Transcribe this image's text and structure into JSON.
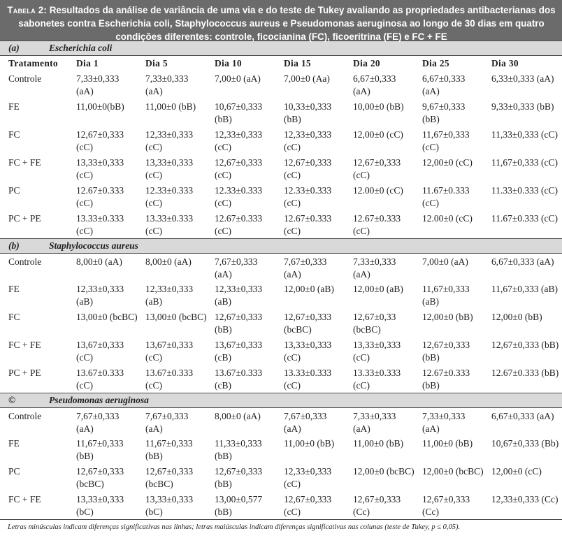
{
  "caption": {
    "lead": "Tabela 2:",
    "text": "Resultados da análise de variância de uma via e do teste de Tukey avaliando as propriedades antibacterianas dos sabonetes contra Escherichia coli, Staphylococcus aureus e Pseudomonas aeruginosa ao longo de 30 dias em quatro condições diferentes: controle, ficocianina (FC), ficoeritrina (FE) e FC + FE"
  },
  "header": [
    "Tratamento",
    "Dia 1",
    "Dia 5",
    "Dia 10",
    "Dia 15",
    "Dia 20",
    "Dia 25",
    "Dia 30"
  ],
  "sections": [
    {
      "tag": "(a)",
      "organism": "Escherichia coli",
      "rows": [
        {
          "label": "Controle",
          "cells": [
            "7,33±0,333 (aA)",
            "7,33±0,333 (aA)",
            "7,00±0 (aA)",
            "7,00±0 (Aa)",
            "6,67±0,333 (aA)",
            "6,67±0,333 (aA)",
            "6,33±0,333 (aA)"
          ]
        },
        {
          "label": "FE",
          "cells": [
            "11,00±0(bB)",
            "11,00±0 (bB)",
            "10,67±0,333 (bB)",
            "10,33±0,333 (bB)",
            "10,00±0 (bB)",
            "9,67±0,333 (bB)",
            "9,33±0,333 (bB)"
          ]
        },
        {
          "label": "FC",
          "cells": [
            "12,67±0,333 (cC)",
            "12,33±0,333 (cC)",
            "12,33±0,333 (cC)",
            "12,33±0,333 (cC)",
            "12,00±0 (cC)",
            "11,67±0,333 (cC)",
            "11,33±0,333 (cC)"
          ]
        },
        {
          "label": "FC + FE",
          "cells": [
            "13,33±0,333 (cC)",
            "13,33±0,333 (cC)",
            "12,67±0,333 (cC)",
            "12,67±0,333 (cC)",
            "12,67±0,333 (cC)",
            "12,00±0 (cC)",
            "11,67±0,333 (cC)"
          ]
        },
        {
          "label": "PC",
          "cells": [
            "12.67±0.333 (cC)",
            "12.33±0.333 (cC)",
            "12.33±0.333 (cC)",
            "12.33±0.333 (cC)",
            "12.00±0 (cC)",
            "11.67±0.333 (cC)",
            "11.33±0.333 (cC)"
          ]
        },
        {
          "label": "PC + PE",
          "cells": [
            "13.33±0.333 (cC)",
            "13.33±0.333 (cC)",
            "12.67±0.333 (cC)",
            "12.67±0.333 (cC)",
            "12.67±0.333 (cC)",
            "12.00±0 (cC)",
            "11.67±0.333 (cC)"
          ]
        }
      ]
    },
    {
      "tag": "(b)",
      "organism": "Staphylococcus aureus",
      "rows": [
        {
          "label": "Controle",
          "cells": [
            "8,00±0 (aA)",
            "8,00±0 (aA)",
            "7,67±0,333 (aA)",
            "7,67±0,333 (aA)",
            "7,33±0,333 (aA)",
            "7,00±0 (aA)",
            "6,67±0,333 (aA)"
          ]
        },
        {
          "label": "FE",
          "cells": [
            "12,33±0,333 (aB)",
            "12,33±0,333 (aB)",
            "12,33±0,333 (aB)",
            "12,00±0 (aB)",
            "12,00±0 (aB)",
            "11,67±0,333 (aB)",
            "11,67±0,333 (aB)"
          ]
        },
        {
          "label": "FC",
          "cells": [
            "13,00±0 (bcBC)",
            "13,00±0 (bcBC)",
            "12,67±0,333 (bB)",
            "12,67±0,333 (bcBC)",
            "12,67±0,33 (bcBC)",
            "12,00±0 (bB)",
            "12,00±0 (bB)"
          ]
        },
        {
          "label": "FC + FE",
          "cells": [
            "13,67±0,333 (cC)",
            "13,67±0,333 (cC)",
            "13,67±0,333 (cB)",
            "13,33±0,333 (cC)",
            "13,33±0,333 (cC)",
            "12,67±0,333 (bB)",
            "12,67±0,333 (bB)"
          ]
        },
        {
          "label": "PC + PE",
          "cells": [
            "13.67±0.333 (cC)",
            "13.67±0.333 (cC)",
            "13.67±0.333 (cB)",
            "13.33±0.333 (cC)",
            "13.33±0.333 (cC)",
            "12.67±0.333 (bB)",
            "12.67±0.333 (bB)"
          ]
        }
      ]
    },
    {
      "tag": "©",
      "organism": "Pseudomonas aeruginosa",
      "rows": [
        {
          "label": "Controle",
          "cells": [
            "7,67±0,333 (aA)",
            "7,67±0,333 (aA)",
            "8,00±0 (aA)",
            "7,67±0,333 (aA)",
            "7,33±0,333 (aA)",
            "7,33±0,333 (aA)",
            "6,67±0,333 (aA)"
          ]
        },
        {
          "label": "FE",
          "cells": [
            "11,67±0,333 (bB)",
            "11,67±0,333 (bB)",
            "11,33±0,333 (bB)",
            "11,00±0 (bB)",
            "11,00±0 (bB)",
            "11,00±0 (bB)",
            "10,67±0,333 (Bb)"
          ]
        },
        {
          "label": "PC",
          "cells": [
            "12,67±0,333 (bcBC)",
            "12,67±0,333 (bcBC)",
            "12,67±0,333 (bB)",
            "12,33±0,333 (cC)",
            "12,00±0 (bcBC)",
            "12,00±0 (bcBC)",
            "12,00±0 (cC)"
          ]
        },
        {
          "label": "FC + FE",
          "cells": [
            "13,33±0,333 (bC)",
            "13,33±0,333 (bC)",
            "13,00±0,577 (bB)",
            "12,67±0,333 (cC)",
            "12,67±0,333 (Cc)",
            "12,67±0,333 (Cc)",
            "12,33±0,333 (Cc)"
          ]
        }
      ]
    }
  ],
  "footnote": "Letras minúsculas indicam diferenças significativas nas linhas; letras maiúsculas indicam diferenças significativas nas colunas (teste de Tukey, p ≤ 0,05)."
}
